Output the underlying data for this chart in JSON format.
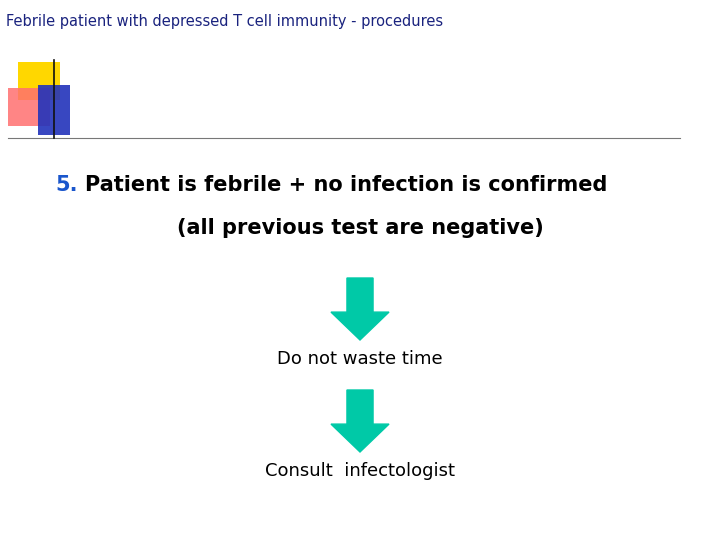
{
  "title": "Febrile patient with depressed T cell immunity - procedures",
  "title_color": "#1a237e",
  "title_fontsize": 10.5,
  "bg_color": "#ffffff",
  "heading_number": "5.",
  "heading_number_color": "#1a56cc",
  "heading_text_line1": "Patient is febrile + no infection is confirmed",
  "heading_text_line2": "(all previous test are negative)",
  "heading_fontsize": 15,
  "heading_color": "#000000",
  "arrow_color": "#00c9a7",
  "label1": "Do not waste time",
  "label1_fontsize": 13,
  "label2": "Consult  infectologist",
  "label2_fontsize": 13,
  "deco_yellow_color": "#FFD700",
  "deco_pink_color": "#FF7070",
  "deco_blue_color": "#2233BB",
  "separator_color": "#888888"
}
